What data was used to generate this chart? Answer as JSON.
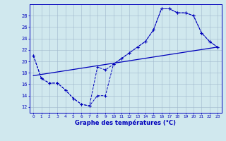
{
  "xlabel": "Graphe des températures (°C)",
  "xlim": [
    -0.5,
    23.5
  ],
  "ylim": [
    11,
    30
  ],
  "yticks": [
    12,
    14,
    16,
    18,
    20,
    22,
    24,
    26,
    28
  ],
  "xticks": [
    0,
    1,
    2,
    3,
    4,
    5,
    6,
    7,
    8,
    9,
    10,
    11,
    12,
    13,
    14,
    15,
    16,
    17,
    18,
    19,
    20,
    21,
    22,
    23
  ],
  "bg_color": "#d0e8ee",
  "line_color": "#0000bb",
  "grid_color": "#a0b8cc",
  "curve1_x": [
    0,
    1,
    2,
    3,
    4,
    5,
    6,
    7,
    8,
    9,
    10,
    11,
    12,
    13,
    14,
    15,
    16,
    17,
    18,
    19,
    20,
    21,
    22,
    23
  ],
  "curve1_y": [
    21.0,
    17.0,
    16.2,
    16.2,
    15.0,
    13.5,
    12.5,
    12.2,
    19.0,
    18.5,
    19.5,
    20.5,
    21.5,
    22.5,
    23.5,
    25.5,
    29.2,
    29.2,
    28.5,
    28.5,
    28.0,
    25.0,
    23.5,
    22.5
  ],
  "curve2_x": [
    0,
    1,
    2,
    3,
    4,
    5,
    6,
    7,
    8,
    9,
    10,
    11,
    12,
    13,
    14,
    15,
    16,
    17,
    18,
    19,
    20,
    21,
    22,
    23
  ],
  "curve2_y": [
    21.0,
    17.0,
    16.2,
    16.2,
    15.0,
    13.5,
    12.5,
    12.2,
    14.0,
    14.0,
    19.5,
    20.5,
    21.5,
    22.5,
    23.5,
    25.5,
    29.2,
    29.2,
    28.5,
    28.5,
    28.0,
    25.0,
    23.5,
    22.5
  ],
  "line3_x": [
    0,
    23
  ],
  "line3_y": [
    17.5,
    22.5
  ]
}
